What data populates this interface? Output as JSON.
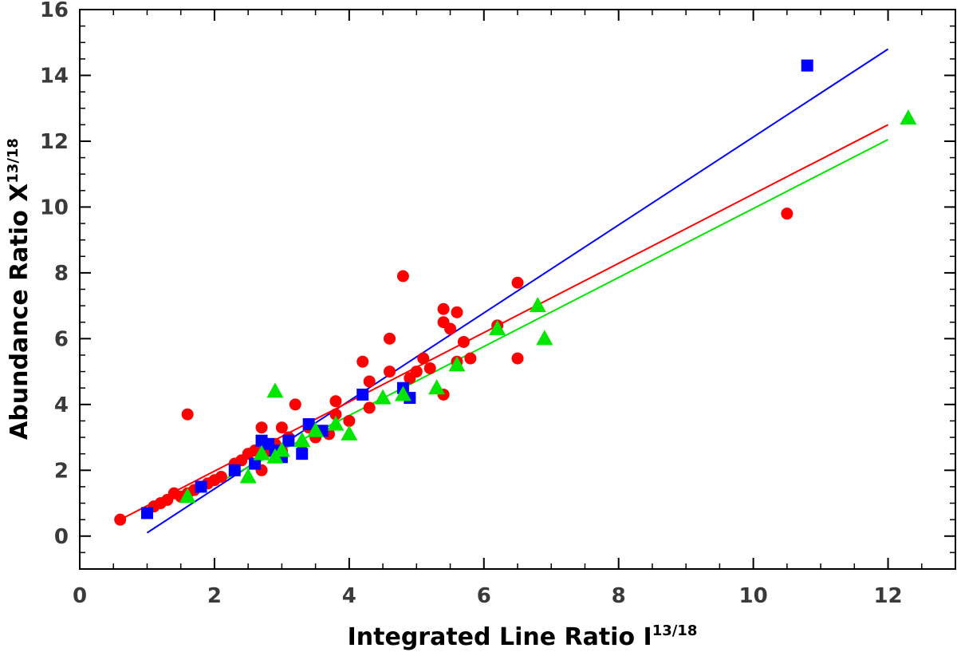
{
  "chart_data": {
    "type": "scatter",
    "title": "",
    "xlabel": "Integrated Line Ratio I",
    "xlabel_sup": "13/18",
    "ylabel": "Abundance Ratio X",
    "ylabel_sup": "13/18",
    "xlim": [
      0,
      13
    ],
    "ylim": [
      -1,
      16
    ],
    "x_ticks": [
      0,
      2,
      4,
      6,
      8,
      10,
      12
    ],
    "y_ticks": [
      0,
      2,
      4,
      6,
      8,
      10,
      12,
      14,
      16
    ],
    "x_minor_step": 0.5,
    "y_minor_step": 0.5,
    "grid": false,
    "series": [
      {
        "name": "red",
        "marker": "circle",
        "color": "#ff0000",
        "x": [
          0.6,
          1.1,
          1.2,
          1.3,
          1.4,
          1.5,
          1.6,
          1.7,
          1.9,
          2.0,
          2.1,
          2.3,
          2.4,
          2.5,
          2.6,
          2.7,
          2.7,
          2.8,
          2.9,
          3.0,
          3.0,
          3.1,
          3.2,
          3.3,
          3.4,
          3.5,
          3.6,
          3.7,
          3.8,
          3.8,
          4.0,
          4.2,
          4.3,
          4.3,
          4.6,
          4.6,
          4.8,
          4.9,
          4.9,
          5.0,
          5.1,
          5.2,
          5.4,
          5.4,
          5.4,
          5.5,
          5.6,
          5.6,
          5.7,
          5.8,
          6.2,
          6.5,
          6.5,
          10.5,
          1.6
        ],
        "y": [
          0.5,
          0.9,
          1.0,
          1.1,
          1.3,
          1.2,
          1.3,
          1.4,
          1.6,
          1.7,
          1.8,
          2.2,
          2.3,
          2.5,
          2.6,
          2.0,
          3.3,
          2.6,
          2.8,
          2.6,
          3.3,
          3.0,
          4.0,
          2.8,
          3.3,
          3.0,
          3.2,
          3.1,
          3.7,
          4.1,
          3.5,
          5.3,
          4.7,
          3.9,
          6.0,
          5.0,
          7.9,
          4.8,
          4.2,
          5.0,
          5.4,
          5.1,
          6.9,
          6.5,
          4.3,
          6.3,
          6.8,
          5.3,
          5.9,
          5.4,
          6.4,
          7.7,
          5.4,
          9.8,
          3.7
        ]
      },
      {
        "name": "blue",
        "marker": "square",
        "color": "#0000ff",
        "x": [
          1.0,
          1.8,
          2.3,
          2.6,
          2.7,
          2.8,
          2.9,
          3.0,
          3.1,
          3.3,
          3.4,
          3.6,
          4.2,
          4.8,
          4.9,
          10.8
        ],
        "y": [
          0.7,
          1.5,
          2.0,
          2.2,
          2.9,
          2.8,
          2.6,
          2.4,
          2.9,
          2.5,
          3.4,
          3.2,
          4.3,
          4.5,
          4.2,
          14.3
        ]
      },
      {
        "name": "green",
        "marker": "triangle",
        "color": "#00e600",
        "x": [
          1.6,
          2.5,
          2.7,
          2.9,
          2.9,
          3.0,
          3.3,
          3.5,
          3.8,
          4.0,
          4.5,
          4.8,
          5.3,
          5.6,
          6.2,
          6.8,
          6.9,
          12.3
        ],
        "y": [
          1.2,
          1.8,
          2.5,
          4.4,
          2.4,
          2.6,
          2.9,
          3.2,
          3.4,
          3.1,
          4.2,
          4.3,
          4.5,
          5.2,
          6.3,
          7.0,
          6.0,
          12.7
        ]
      }
    ],
    "fit_lines": [
      {
        "name": "blue-fit",
        "color": "#0000ff",
        "x": [
          1.0,
          12.0
        ],
        "y": [
          0.1,
          14.8
        ]
      },
      {
        "name": "red-fit",
        "color": "#ff0000",
        "x": [
          0.6,
          12.0
        ],
        "y": [
          0.5,
          12.5
        ]
      },
      {
        "name": "green-fit",
        "color": "#00e600",
        "x": [
          1.6,
          12.0
        ],
        "y": [
          1.15,
          12.05
        ]
      }
    ]
  }
}
